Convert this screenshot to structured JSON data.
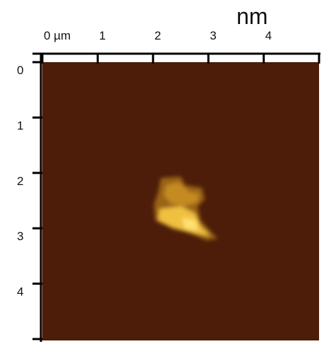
{
  "chart_data": {
    "type": "image",
    "title": "nm",
    "xlim": [
      0,
      5
    ],
    "ylim": [
      0,
      5
    ],
    "xticks": [
      {
        "value": 0,
        "label": "0 µm"
      },
      1,
      2,
      3,
      4
    ],
    "yticks": [
      0,
      1,
      2,
      3,
      4
    ]
  }
}
